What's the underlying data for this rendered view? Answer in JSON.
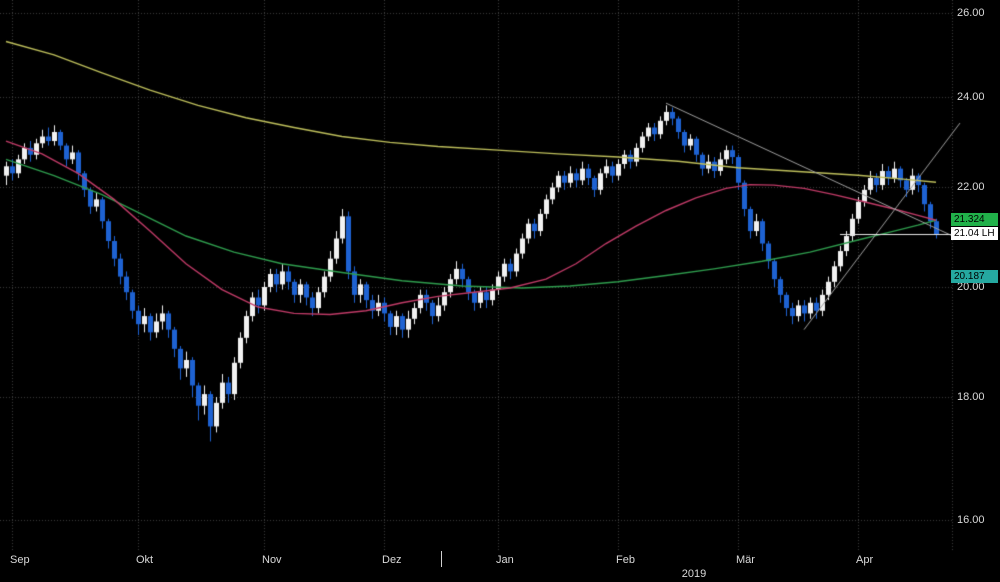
{
  "theme": {
    "background": "#000000",
    "grid": "#3c3c3c",
    "candle_up": "#f2f2f2",
    "candle_down": "#1e62d2",
    "axis_text": "#d9d9d9",
    "trend_line": "#9f9f9f",
    "last_price_line": "#e8e8e8",
    "year_divider": "#d0d0d0"
  },
  "axis": {
    "y_ticks": [
      {
        "label": "26.00",
        "value": 26
      },
      {
        "label": "24.00",
        "value": 24
      },
      {
        "label": "22.00",
        "value": 22
      },
      {
        "label": "20.00",
        "value": 20
      },
      {
        "label": "18.00",
        "value": 18
      },
      {
        "label": "16.00",
        "value": 16
      }
    ],
    "months": [
      {
        "label": "Sep",
        "index": 1
      },
      {
        "label": "Okt",
        "index": 22
      },
      {
        "label": "Nov",
        "index": 43
      },
      {
        "label": "Dez",
        "index": 63
      },
      {
        "label": "Jan",
        "index": 82
      },
      {
        "label": "Feb",
        "index": 102
      },
      {
        "label": "Mär",
        "index": 122
      },
      {
        "label": "Apr",
        "index": 142
      }
    ],
    "year_label": "2019",
    "year_divider_index": 72.5
  },
  "price_labels": [
    {
      "text": "21.324",
      "value": 21.324,
      "bg": "#21b14a",
      "fg": "#000000"
    },
    {
      "text": "21.04 LH",
      "value": 21.04,
      "bg": "#ffffff",
      "fg": "#000000"
    },
    {
      "text": "20.187",
      "value": 20.187,
      "bg": "#25a8a0",
      "fg": "#000000"
    }
  ],
  "chart_data": {
    "type": "candlestick",
    "scale": "log",
    "y_scale": {
      "min": 15.547,
      "max": 26.326
    },
    "x_axis_months": [
      "Sep",
      "Okt",
      "Nov",
      "Dez",
      "Jan",
      "Feb",
      "Mär",
      "Apr"
    ],
    "year": "2019",
    "ohlc": [
      [
        22.25,
        22.55,
        22.05,
        22.45
      ],
      [
        22.45,
        22.6,
        22.15,
        22.3
      ],
      [
        22.3,
        22.7,
        22.2,
        22.6
      ],
      [
        22.6,
        22.95,
        22.5,
        22.85
      ],
      [
        22.85,
        23.0,
        22.55,
        22.7
      ],
      [
        22.7,
        23.05,
        22.6,
        22.95
      ],
      [
        22.95,
        23.25,
        22.85,
        23.1
      ],
      [
        23.1,
        23.3,
        22.9,
        23.0
      ],
      [
        23.0,
        23.35,
        22.9,
        23.2
      ],
      [
        23.2,
        23.25,
        22.8,
        22.9
      ],
      [
        22.9,
        22.95,
        22.45,
        22.6
      ],
      [
        22.6,
        22.9,
        22.5,
        22.75
      ],
      [
        22.75,
        22.8,
        22.15,
        22.3
      ],
      [
        22.3,
        22.35,
        21.8,
        21.95
      ],
      [
        21.95,
        22.0,
        21.45,
        21.6
      ],
      [
        21.6,
        21.9,
        21.5,
        21.75
      ],
      [
        21.75,
        21.8,
        21.15,
        21.3
      ],
      [
        21.3,
        21.35,
        20.75,
        20.9
      ],
      [
        20.9,
        21.0,
        20.4,
        20.55
      ],
      [
        20.55,
        20.65,
        20.05,
        20.2
      ],
      [
        20.2,
        20.3,
        19.75,
        19.9
      ],
      [
        19.9,
        19.95,
        19.4,
        19.55
      ],
      [
        19.55,
        19.65,
        19.1,
        19.3
      ],
      [
        19.3,
        19.6,
        19.15,
        19.45
      ],
      [
        19.45,
        19.5,
        19.0,
        19.15
      ],
      [
        19.15,
        19.5,
        19.05,
        19.35
      ],
      [
        19.35,
        19.65,
        19.2,
        19.5
      ],
      [
        19.5,
        19.55,
        19.05,
        19.2
      ],
      [
        19.2,
        19.25,
        18.7,
        18.85
      ],
      [
        18.85,
        18.9,
        18.3,
        18.5
      ],
      [
        18.5,
        18.8,
        18.35,
        18.65
      ],
      [
        18.65,
        18.7,
        18.0,
        18.2
      ],
      [
        18.2,
        18.25,
        17.6,
        17.85
      ],
      [
        17.85,
        18.2,
        17.7,
        18.05
      ],
      [
        18.05,
        18.1,
        17.25,
        17.5
      ],
      [
        17.5,
        18.0,
        17.4,
        17.9
      ],
      [
        17.9,
        18.4,
        17.8,
        18.25
      ],
      [
        18.25,
        18.35,
        17.9,
        18.05
      ],
      [
        18.05,
        18.7,
        17.95,
        18.6
      ],
      [
        18.6,
        19.15,
        18.5,
        19.05
      ],
      [
        19.05,
        19.55,
        18.95,
        19.45
      ],
      [
        19.45,
        19.9,
        19.35,
        19.8
      ],
      [
        19.8,
        19.95,
        19.5,
        19.65
      ],
      [
        19.65,
        20.1,
        19.55,
        20.0
      ],
      [
        20.0,
        20.35,
        19.9,
        20.25
      ],
      [
        20.25,
        20.35,
        19.9,
        20.05
      ],
      [
        20.05,
        20.45,
        19.95,
        20.3
      ],
      [
        20.3,
        20.4,
        19.95,
        20.1
      ],
      [
        20.1,
        20.15,
        19.7,
        19.85
      ],
      [
        19.85,
        20.15,
        19.7,
        20.05
      ],
      [
        20.05,
        20.1,
        19.65,
        19.8
      ],
      [
        19.8,
        19.9,
        19.45,
        19.6
      ],
      [
        19.6,
        20.0,
        19.5,
        19.9
      ],
      [
        19.9,
        20.3,
        19.8,
        20.2
      ],
      [
        20.2,
        20.7,
        20.1,
        20.55
      ],
      [
        20.55,
        21.1,
        20.45,
        20.95
      ],
      [
        20.95,
        21.55,
        20.85,
        21.4
      ],
      [
        21.4,
        21.5,
        20.15,
        20.3
      ],
      [
        20.3,
        20.4,
        19.7,
        19.85
      ],
      [
        19.85,
        20.15,
        19.7,
        20.05
      ],
      [
        20.05,
        20.1,
        19.6,
        19.75
      ],
      [
        19.75,
        19.85,
        19.4,
        19.55
      ],
      [
        19.55,
        19.85,
        19.45,
        19.7
      ],
      [
        19.7,
        19.8,
        19.35,
        19.5
      ],
      [
        19.5,
        19.55,
        19.1,
        19.25
      ],
      [
        19.25,
        19.55,
        19.1,
        19.45
      ],
      [
        19.45,
        19.5,
        19.05,
        19.2
      ],
      [
        19.2,
        19.55,
        19.05,
        19.4
      ],
      [
        19.4,
        19.7,
        19.3,
        19.6
      ],
      [
        19.6,
        19.95,
        19.5,
        19.85
      ],
      [
        19.85,
        19.95,
        19.55,
        19.7
      ],
      [
        19.7,
        19.75,
        19.3,
        19.45
      ],
      [
        19.45,
        19.8,
        19.35,
        19.65
      ],
      [
        19.65,
        20.0,
        19.55,
        19.9
      ],
      [
        19.9,
        20.25,
        19.8,
        20.15
      ],
      [
        20.15,
        20.5,
        20.05,
        20.35
      ],
      [
        20.35,
        20.45,
        20.0,
        20.15
      ],
      [
        20.15,
        20.2,
        19.75,
        19.9
      ],
      [
        19.9,
        19.95,
        19.55,
        19.7
      ],
      [
        19.7,
        20.0,
        19.6,
        19.9
      ],
      [
        19.9,
        20.0,
        19.6,
        19.75
      ],
      [
        19.75,
        20.05,
        19.65,
        19.95
      ],
      [
        19.95,
        20.3,
        19.85,
        20.2
      ],
      [
        20.2,
        20.55,
        20.1,
        20.45
      ],
      [
        20.45,
        20.55,
        20.15,
        20.3
      ],
      [
        20.3,
        20.75,
        20.2,
        20.65
      ],
      [
        20.65,
        21.05,
        20.55,
        20.95
      ],
      [
        20.95,
        21.35,
        20.85,
        21.25
      ],
      [
        21.25,
        21.35,
        20.95,
        21.1
      ],
      [
        21.1,
        21.55,
        21.0,
        21.45
      ],
      [
        21.45,
        21.85,
        21.35,
        21.75
      ],
      [
        21.75,
        22.1,
        21.65,
        22.0
      ],
      [
        22.0,
        22.35,
        21.9,
        22.25
      ],
      [
        22.25,
        22.35,
        21.95,
        22.1
      ],
      [
        22.1,
        22.45,
        22.0,
        22.3
      ],
      [
        22.3,
        22.4,
        22.0,
        22.15
      ],
      [
        22.15,
        22.55,
        22.05,
        22.4
      ],
      [
        22.4,
        22.5,
        22.05,
        22.2
      ],
      [
        22.2,
        22.25,
        21.8,
        21.95
      ],
      [
        21.95,
        22.4,
        21.85,
        22.3
      ],
      [
        22.3,
        22.6,
        22.2,
        22.45
      ],
      [
        22.45,
        22.55,
        22.1,
        22.25
      ],
      [
        22.25,
        22.6,
        22.15,
        22.5
      ],
      [
        22.5,
        22.8,
        22.4,
        22.7
      ],
      [
        22.7,
        22.8,
        22.4,
        22.55
      ],
      [
        22.55,
        22.95,
        22.45,
        22.85
      ],
      [
        22.85,
        23.2,
        22.75,
        23.1
      ],
      [
        23.1,
        23.4,
        23.0,
        23.3
      ],
      [
        23.3,
        23.4,
        23.0,
        23.15
      ],
      [
        23.15,
        23.55,
        23.05,
        23.45
      ],
      [
        23.45,
        23.8,
        23.35,
        23.65
      ],
      [
        23.65,
        23.75,
        23.35,
        23.5
      ],
      [
        23.5,
        23.55,
        23.05,
        23.2
      ],
      [
        23.2,
        23.25,
        22.75,
        22.9
      ],
      [
        22.9,
        23.15,
        22.8,
        23.05
      ],
      [
        23.05,
        23.1,
        22.55,
        22.7
      ],
      [
        22.7,
        22.75,
        22.25,
        22.4
      ],
      [
        22.4,
        22.7,
        22.3,
        22.55
      ],
      [
        22.55,
        22.65,
        22.2,
        22.35
      ],
      [
        22.35,
        22.75,
        22.25,
        22.6
      ],
      [
        22.6,
        22.9,
        22.5,
        22.8
      ],
      [
        22.8,
        22.9,
        22.5,
        22.65
      ],
      [
        22.65,
        22.7,
        21.95,
        22.1
      ],
      [
        22.1,
        22.15,
        21.4,
        21.55
      ],
      [
        21.55,
        21.6,
        20.95,
        21.1
      ],
      [
        21.1,
        21.45,
        21.0,
        21.3
      ],
      [
        21.3,
        21.35,
        20.7,
        20.85
      ],
      [
        20.85,
        20.9,
        20.35,
        20.5
      ],
      [
        20.5,
        20.55,
        20.0,
        20.15
      ],
      [
        20.15,
        20.2,
        19.7,
        19.85
      ],
      [
        19.85,
        19.9,
        19.45,
        19.6
      ],
      [
        19.6,
        19.7,
        19.3,
        19.45
      ],
      [
        19.45,
        19.75,
        19.35,
        19.65
      ],
      [
        19.65,
        19.75,
        19.35,
        19.5
      ],
      [
        19.5,
        19.8,
        19.4,
        19.7
      ],
      [
        19.7,
        19.8,
        19.4,
        19.55
      ],
      [
        19.55,
        19.95,
        19.45,
        19.85
      ],
      [
        19.85,
        20.2,
        19.75,
        20.1
      ],
      [
        20.1,
        20.5,
        20.0,
        20.4
      ],
      [
        20.4,
        20.8,
        20.3,
        20.7
      ],
      [
        20.7,
        21.1,
        20.6,
        21.0
      ],
      [
        21.0,
        21.45,
        20.9,
        21.35
      ],
      [
        21.35,
        21.8,
        21.25,
        21.7
      ],
      [
        21.7,
        22.05,
        21.6,
        21.95
      ],
      [
        21.95,
        22.35,
        21.85,
        22.2
      ],
      [
        22.2,
        22.3,
        21.9,
        22.05
      ],
      [
        22.05,
        22.5,
        21.95,
        22.35
      ],
      [
        22.35,
        22.45,
        22.05,
        22.2
      ],
      [
        22.2,
        22.55,
        22.1,
        22.4
      ],
      [
        22.4,
        22.45,
        22.0,
        22.15
      ],
      [
        22.15,
        22.2,
        21.8,
        21.95
      ],
      [
        21.95,
        22.4,
        21.85,
        22.25
      ],
      [
        22.25,
        22.3,
        21.9,
        22.05
      ],
      [
        22.05,
        22.1,
        21.5,
        21.65
      ],
      [
        21.65,
        21.7,
        21.15,
        21.3
      ],
      [
        21.3,
        21.35,
        20.95,
        21.04
      ]
    ],
    "moving_averages": [
      {
        "name": "ma-long-yellow",
        "color": "#bfc05c",
        "points": [
          [
            0,
            25.3
          ],
          [
            8,
            24.98
          ],
          [
            16,
            24.55
          ],
          [
            24,
            24.15
          ],
          [
            32,
            23.8
          ],
          [
            40,
            23.52
          ],
          [
            48,
            23.3
          ],
          [
            56,
            23.1
          ],
          [
            64,
            22.97
          ],
          [
            72,
            22.88
          ],
          [
            82,
            22.8
          ],
          [
            92,
            22.72
          ],
          [
            102,
            22.65
          ],
          [
            112,
            22.56
          ],
          [
            122,
            22.42
          ],
          [
            132,
            22.34
          ],
          [
            142,
            22.26
          ],
          [
            150,
            22.17
          ],
          [
            155,
            22.11
          ]
        ]
      },
      {
        "name": "ma-mid-green",
        "color": "#2f9e4e",
        "points": [
          [
            0,
            22.6
          ],
          [
            8,
            22.25
          ],
          [
            16,
            21.85
          ],
          [
            22,
            21.48
          ],
          [
            30,
            21.0
          ],
          [
            38,
            20.68
          ],
          [
            46,
            20.45
          ],
          [
            56,
            20.28
          ],
          [
            66,
            20.12
          ],
          [
            76,
            20.02
          ],
          [
            86,
            19.98
          ],
          [
            94,
            20.02
          ],
          [
            102,
            20.1
          ],
          [
            110,
            20.22
          ],
          [
            118,
            20.35
          ],
          [
            126,
            20.5
          ],
          [
            134,
            20.68
          ],
          [
            142,
            20.92
          ],
          [
            148,
            21.1
          ],
          [
            152,
            21.22
          ],
          [
            155,
            21.32
          ]
        ]
      },
      {
        "name": "ma-short-magenta",
        "color": "#c23b68",
        "points": [
          [
            0,
            23.0
          ],
          [
            6,
            22.72
          ],
          [
            12,
            22.3
          ],
          [
            18,
            21.75
          ],
          [
            24,
            21.1
          ],
          [
            30,
            20.45
          ],
          [
            36,
            19.95
          ],
          [
            42,
            19.62
          ],
          [
            48,
            19.5
          ],
          [
            54,
            19.48
          ],
          [
            60,
            19.55
          ],
          [
            66,
            19.7
          ],
          [
            72,
            19.82
          ],
          [
            78,
            19.9
          ],
          [
            84,
            19.98
          ],
          [
            90,
            20.15
          ],
          [
            95,
            20.45
          ],
          [
            100,
            20.85
          ],
          [
            105,
            21.2
          ],
          [
            110,
            21.52
          ],
          [
            115,
            21.78
          ],
          [
            120,
            21.98
          ],
          [
            124,
            22.06
          ],
          [
            128,
            22.05
          ],
          [
            133,
            21.98
          ],
          [
            138,
            21.85
          ],
          [
            143,
            21.7
          ],
          [
            148,
            21.55
          ],
          [
            152,
            21.42
          ],
          [
            155,
            21.32
          ]
        ]
      }
    ],
    "trend_lines": [
      {
        "from": [
          110,
          23.85
        ],
        "to": [
          158.5,
          20.96
        ]
      },
      {
        "from": [
          133,
          19.2
        ],
        "to": [
          159,
          23.4
        ]
      }
    ],
    "last_price": {
      "value": 21.04,
      "from_index": 139
    }
  }
}
